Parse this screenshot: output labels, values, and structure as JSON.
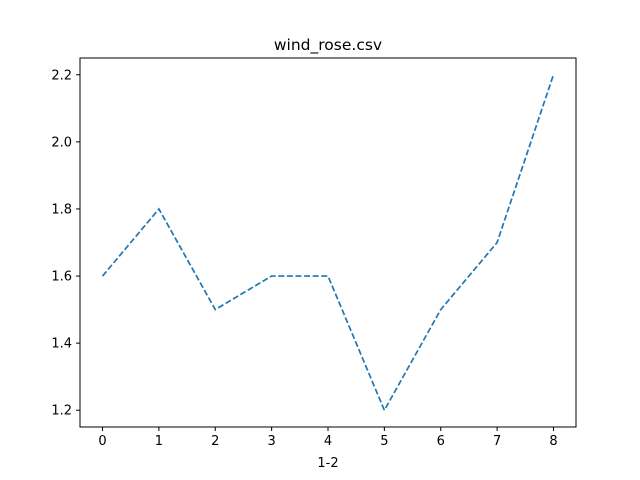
{
  "chart_data": {
    "type": "line",
    "title": "wind_rose.csv",
    "xlabel": "1-2",
    "ylabel": "",
    "x": [
      0,
      1,
      2,
      3,
      4,
      5,
      6,
      7,
      8
    ],
    "series": [
      {
        "values": [
          1.6,
          1.8,
          1.5,
          1.6,
          1.6,
          1.2,
          1.5,
          1.7,
          2.2
        ],
        "color": "#1f77b4",
        "line_style": "dashed"
      }
    ],
    "xlim": [
      -0.4,
      8.4
    ],
    "ylim": [
      1.15,
      2.25
    ],
    "x_ticks": [
      "0",
      "1",
      "2",
      "3",
      "4",
      "5",
      "6",
      "7",
      "8"
    ],
    "y_ticks": [
      "1.2",
      "1.4",
      "1.6",
      "1.8",
      "2.0",
      "2.2"
    ],
    "grid": false,
    "legend": "none"
  }
}
